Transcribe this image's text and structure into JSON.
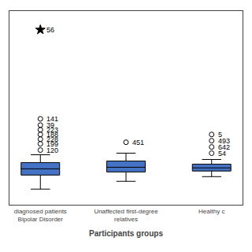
{
  "chart_data": {
    "type": "box",
    "xlabel": "Participants groups",
    "categories": [
      "diagnosed patients\nBipolar Disorder",
      "Unaffected first-degree\nrelatives",
      "Healthy c"
    ],
    "median": [
      11.5,
      12.0,
      11.8
    ],
    "q1": [
      9.5,
      10.5,
      10.8
    ],
    "q3": [
      13.5,
      14.0,
      13.0
    ],
    "whislo": [
      5.0,
      7.5,
      9.0
    ],
    "whishi": [
      16.0,
      16.5,
      14.5
    ],
    "color": "#4472C4",
    "outliers": [
      {
        "category": "diagnosed patients\nBipolar Disorder",
        "y": 17.5,
        "label": "120",
        "marker": "circle"
      },
      {
        "category": "diagnosed patients\nBipolar Disorder",
        "y": 19.5,
        "label": "199",
        "marker": "circle"
      },
      {
        "category": "diagnosed patients\nBipolar Disorder",
        "y": 21.0,
        "label": "228",
        "marker": "circle"
      },
      {
        "category": "diagnosed patients\nBipolar Disorder",
        "y": 22.5,
        "label": "188",
        "marker": "circle"
      },
      {
        "category": "diagnosed patients\nBipolar Disorder",
        "y": 24.0,
        "label": "223",
        "marker": "circle"
      },
      {
        "category": "diagnosed patients\nBipolar Disorder",
        "y": 25.5,
        "label": "39",
        "marker": "circle"
      },
      {
        "category": "diagnosed patients\nBipolar Disorder",
        "y": 27.5,
        "label": "141",
        "marker": "circle"
      },
      {
        "category": "diagnosed patients\nBipolar Disorder",
        "y": 56.0,
        "label": "56",
        "marker": "star"
      },
      {
        "category": "Unaffected first-degree\nrelatives",
        "y": 20.0,
        "label": "451",
        "marker": "circle"
      },
      {
        "category": "Healthy c",
        "y": 16.5,
        "label": "54",
        "marker": "circle"
      },
      {
        "category": "Healthy c",
        "y": 18.5,
        "label": "642",
        "marker": "circle"
      },
      {
        "category": "Healthy c",
        "y": 20.5,
        "label": "493",
        "marker": "circle"
      },
      {
        "category": "Healthy c",
        "y": 22.5,
        "label": "5",
        "marker": "circle"
      }
    ],
    "ylim": [
      0,
      62
    ],
    "grid": false,
    "tick_labels": "x"
  }
}
